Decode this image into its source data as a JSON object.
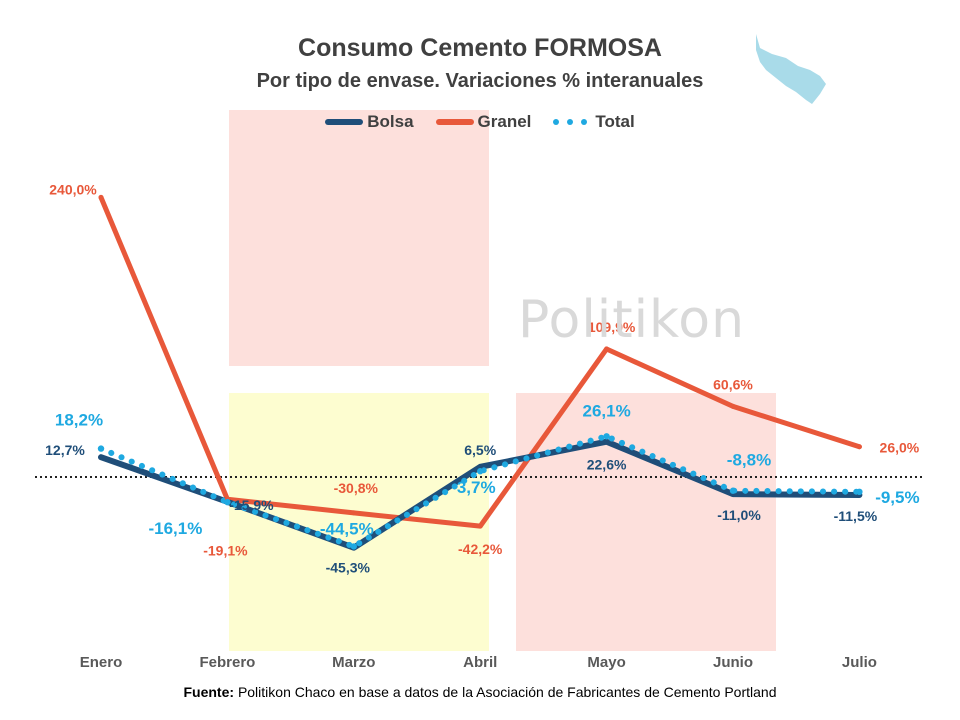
{
  "source": {
    "label": "Fuente:",
    "text": "Politikon Chaco en base a datos de la Asociación de Fabricantes de Cemento Portland"
  },
  "watermark": "Politikon",
  "colors": {
    "bolsa": "#1f4e79",
    "granel": "#e8583a",
    "total": "#1fa9e1",
    "pink_band": "#fde0dc",
    "yellow_band": "#fdfdd0",
    "map": "#a9dbe9"
  },
  "chart_data": {
    "type": "line",
    "title": "Consumo Cemento FORMOSA",
    "subtitle": "Por tipo de envase. Variaciones % interanuales",
    "categories": [
      "Enero",
      "Febrero",
      "Marzo",
      "Abril",
      "Mayo",
      "Junio",
      "Julio"
    ],
    "series": [
      {
        "name": "Bolsa",
        "values": [
          12.7,
          -15.9,
          -45.3,
          6.5,
          22.6,
          -11.0,
          -11.5
        ],
        "labels": [
          "12,7%",
          "-15,9%",
          "-45,3%",
          "6,5%",
          "22,6%",
          "-11,0%",
          "-11,5%"
        ]
      },
      {
        "name": "Granel",
        "values": [
          240.0,
          -19.1,
          -30.8,
          -42.2,
          109.9,
          60.6,
          26.0
        ],
        "labels": [
          "240,0%",
          "-19,1%",
          "-30,8%",
          "-42,2%",
          "109,9%",
          "60,6%",
          "26,0%"
        ]
      },
      {
        "name": "Total",
        "values": [
          18.2,
          -16.1,
          -44.5,
          3.7,
          26.1,
          -8.8,
          -9.5
        ],
        "labels": [
          "18,2%",
          "-16,1%",
          "-44,5%",
          "3,7%",
          "26,1%",
          "-8,8%",
          "-9,5%"
        ]
      }
    ],
    "zero_line": "dotted",
    "legend_position": "top-center",
    "grid": false
  }
}
